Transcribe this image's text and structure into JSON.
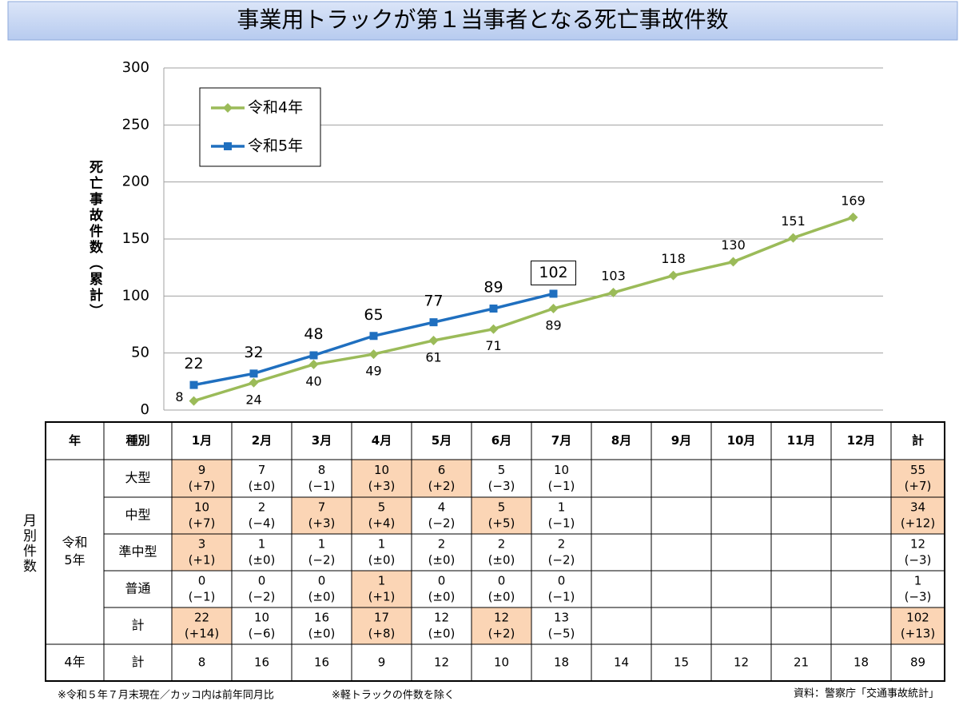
{
  "chart_data": {
    "type": "line",
    "title": "事業用トラックが第１当事者となる死亡事故件数",
    "y_label": "死亡事故件数（累計）",
    "categories": [
      "1月",
      "2月",
      "3月",
      "4月",
      "5月",
      "6月",
      "7月",
      "8月",
      "9月",
      "10月",
      "11月",
      "12月"
    ],
    "series": [
      {
        "name": "令和4年",
        "color": "#9bbb59",
        "marker": "diamond",
        "label_color": "#a6a6a6",
        "values": [
          8,
          24,
          40,
          49,
          61,
          71,
          89,
          103,
          118,
          130,
          151,
          169
        ]
      },
      {
        "name": "令和5年",
        "color": "#1f6fbf",
        "marker": "square",
        "label_color": "#000000",
        "values": [
          22,
          32,
          48,
          65,
          77,
          89,
          102,
          null,
          null,
          null,
          null,
          null
        ]
      }
    ],
    "ylim": [
      0,
      300
    ],
    "yticks": [
      0,
      50,
      100,
      150,
      200,
      250,
      300
    ],
    "grid": true,
    "legend": "upper left"
  },
  "table": {
    "side_label": "月別件数",
    "header": [
      "年",
      "種別",
      "1月",
      "2月",
      "3月",
      "4月",
      "5月",
      "6月",
      "7月",
      "8月",
      "9月",
      "10月",
      "11月",
      "12月",
      "計"
    ],
    "group": [
      "令和",
      "5年"
    ],
    "rows": [
      {
        "type": "大型",
        "cells": [
          [
            9,
            "(+7)"
          ],
          [
            7,
            "(±0)"
          ],
          [
            8,
            "(−1)"
          ],
          [
            10,
            "(+3)"
          ],
          [
            6,
            "(+2)"
          ],
          [
            5,
            "(−3)"
          ],
          [
            10,
            "(−1)"
          ],
          null,
          null,
          null,
          null,
          null,
          [
            55,
            "(+7)"
          ]
        ],
        "highlight": [
          true,
          false,
          false,
          true,
          true,
          false,
          false,
          false,
          false,
          false,
          false,
          false,
          true
        ]
      },
      {
        "type": "中型",
        "cells": [
          [
            10,
            "(+7)"
          ],
          [
            2,
            "(−4)"
          ],
          [
            7,
            "(+3)"
          ],
          [
            5,
            "(+4)"
          ],
          [
            4,
            "(−2)"
          ],
          [
            5,
            "(+5)"
          ],
          [
            1,
            "(−1)"
          ],
          null,
          null,
          null,
          null,
          null,
          [
            34,
            "(+12)"
          ]
        ],
        "highlight": [
          true,
          false,
          true,
          true,
          false,
          true,
          false,
          false,
          false,
          false,
          false,
          false,
          true
        ]
      },
      {
        "type": "準中型",
        "cells": [
          [
            3,
            "(+1)"
          ],
          [
            1,
            "(±0)"
          ],
          [
            1,
            "(−2)"
          ],
          [
            1,
            "(±0)"
          ],
          [
            2,
            "(±0)"
          ],
          [
            2,
            "(±0)"
          ],
          [
            2,
            "(−2)"
          ],
          null,
          null,
          null,
          null,
          null,
          [
            12,
            "(−3)"
          ]
        ],
        "highlight": [
          true,
          false,
          false,
          false,
          false,
          false,
          false,
          false,
          false,
          false,
          false,
          false,
          false
        ]
      },
      {
        "type": "普通",
        "cells": [
          [
            0,
            "(−1)"
          ],
          [
            0,
            "(−2)"
          ],
          [
            0,
            "(±0)"
          ],
          [
            1,
            "(+1)"
          ],
          [
            0,
            "(±0)"
          ],
          [
            0,
            "(±0)"
          ],
          [
            0,
            "(−1)"
          ],
          null,
          null,
          null,
          null,
          null,
          [
            1,
            "(−3)"
          ]
        ],
        "highlight": [
          false,
          false,
          false,
          true,
          false,
          false,
          false,
          false,
          false,
          false,
          false,
          false,
          false
        ]
      },
      {
        "type": "計",
        "cells": [
          [
            22,
            "(+14)"
          ],
          [
            10,
            "(−6)"
          ],
          [
            16,
            "(±0)"
          ],
          [
            17,
            "(+8)"
          ],
          [
            12,
            "(±0)"
          ],
          [
            12,
            "(+2)"
          ],
          [
            13,
            "(−5)"
          ],
          null,
          null,
          null,
          null,
          null,
          [
            102,
            "(+13)"
          ]
        ],
        "highlight": [
          true,
          false,
          false,
          true,
          false,
          true,
          false,
          false,
          false,
          false,
          false,
          false,
          true
        ]
      }
    ],
    "prev": {
      "year": "4年",
      "type": "計",
      "values": [
        8,
        16,
        16,
        9,
        12,
        10,
        18,
        14,
        15,
        12,
        21,
        18,
        89
      ],
      "muted": [
        false,
        false,
        false,
        false,
        false,
        false,
        false,
        true,
        true,
        true,
        true,
        true,
        false
      ]
    },
    "highlight_color": "#fbd5b5"
  },
  "footnotes": [
    "※令和５年７月末現在／カッコ内は前年同月比",
    "※軽トラックの件数を除く",
    "資料：警察庁「交通事故統計」"
  ]
}
